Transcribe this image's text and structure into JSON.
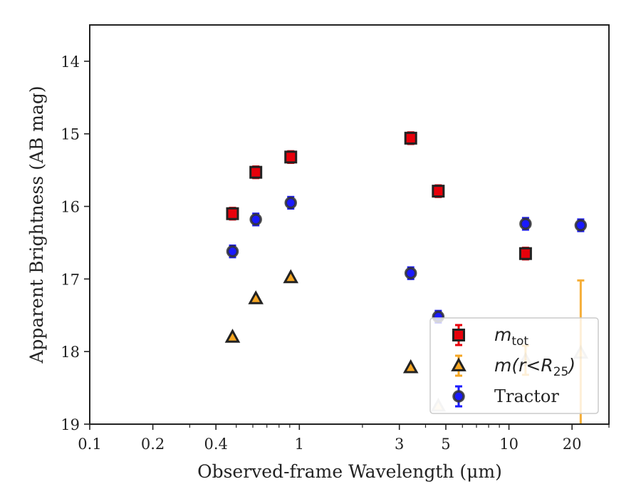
{
  "chart_data": {
    "type": "scatter",
    "xlabel": "Observed-frame Wavelength (μm)",
    "ylabel": "Apparent Brightness (AB mag)",
    "xscale": "log",
    "xlim": [
      0.1,
      30
    ],
    "ylim": [
      19,
      13.5
    ],
    "y_inverted": true,
    "grid": false,
    "legend_position": "lower-right",
    "x_tick_labels": [
      "0.1",
      "0.2",
      "0.4",
      "1",
      "3",
      "5",
      "10",
      "20"
    ],
    "x_tick_values": [
      0.1,
      0.2,
      0.4,
      1,
      3,
      5,
      10,
      20
    ],
    "y_tick_labels": [
      "14",
      "15",
      "16",
      "17",
      "18",
      "19"
    ],
    "y_tick_values": [
      14,
      15,
      16,
      17,
      18,
      19
    ],
    "series": [
      {
        "name": "m_tot",
        "legend_label": {
          "main": "m",
          "sub": "tot"
        },
        "marker": "square",
        "color": "#e8000b",
        "edge_color": "#222222",
        "error_color": "#e8000b",
        "points": [
          {
            "x": 0.48,
            "y": 16.1,
            "err": 0.08
          },
          {
            "x": 0.62,
            "y": 15.53,
            "err": 0.08
          },
          {
            "x": 0.91,
            "y": 15.32,
            "err": 0.08
          },
          {
            "x": 3.4,
            "y": 15.06,
            "err": 0.08
          },
          {
            "x": 4.6,
            "y": 15.79,
            "err": 0.08
          },
          {
            "x": 12.0,
            "y": 16.65,
            "err": 0.08
          }
        ]
      },
      {
        "name": "m(r<R25)",
        "legend_label": {
          "main": "m(r<R",
          "sub": "25",
          "tail": ")"
        },
        "marker": "triangle",
        "color": "#f5a623",
        "edge_color": "#222222",
        "error_color": "#f5a623",
        "points": [
          {
            "x": 0.48,
            "y": 17.8,
            "err": 0
          },
          {
            "x": 0.62,
            "y": 17.27,
            "err": 0
          },
          {
            "x": 0.91,
            "y": 16.98,
            "err": 0
          },
          {
            "x": 3.4,
            "y": 18.22,
            "err": 0
          },
          {
            "x": 4.6,
            "y": 18.75,
            "err": 0,
            "faded": true
          },
          {
            "x": 12.0,
            "y": 18.12,
            "err": 0.2,
            "faded": true
          },
          {
            "x": 22.0,
            "y": 18.02,
            "err": 1.0,
            "faded": true,
            "err_low_only": 1.0
          }
        ]
      },
      {
        "name": "Tractor",
        "legend_label": {
          "main": "Tractor"
        },
        "marker": "circle",
        "color": "#1a1aff",
        "edge_color": "#333333",
        "error_color": "#1a1aff",
        "points": [
          {
            "x": 0.48,
            "y": 16.62,
            "err": 0.08
          },
          {
            "x": 0.62,
            "y": 16.18,
            "err": 0.08
          },
          {
            "x": 0.91,
            "y": 15.95,
            "err": 0.08
          },
          {
            "x": 3.4,
            "y": 16.92,
            "err": 0.08
          },
          {
            "x": 4.6,
            "y": 17.52,
            "err": 0.08
          },
          {
            "x": 12.0,
            "y": 16.24,
            "err": 0.08
          },
          {
            "x": 22.0,
            "y": 16.26,
            "err": 0.08
          }
        ]
      }
    ]
  }
}
